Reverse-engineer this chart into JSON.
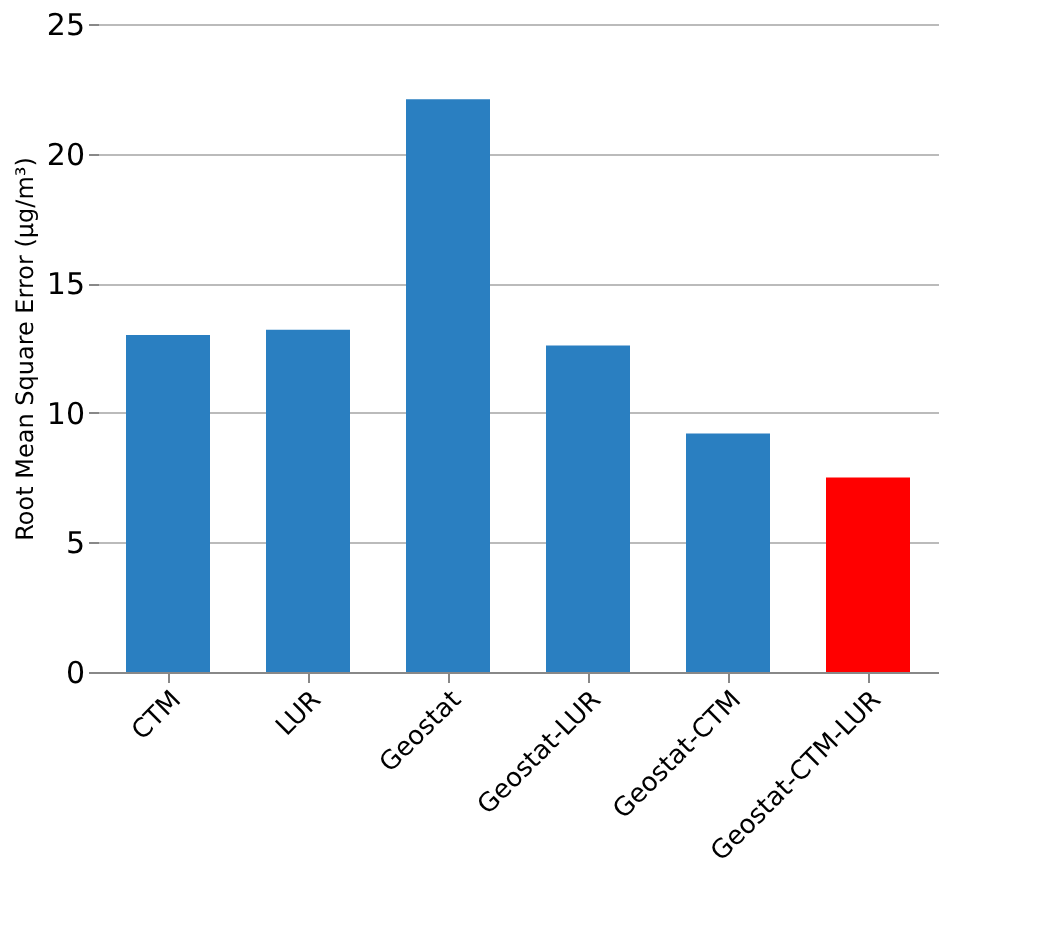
{
  "chart_data": {
    "type": "bar",
    "ylabel": "Root Mean Square Error (µg/m³)",
    "categories": [
      "CTM",
      "LUR",
      "Geostat",
      "Geostat-LUR",
      "Geostat-CTM",
      "Geostat-CTM-LUR"
    ],
    "values": [
      13.0,
      13.2,
      22.1,
      12.6,
      9.2,
      7.5
    ],
    "colors": [
      "#2a7fc1",
      "#2a7fc1",
      "#2a7fc1",
      "#2a7fc1",
      "#2a7fc1",
      "#ff0000"
    ],
    "ylim": [
      0,
      25
    ],
    "yticks": [
      0,
      5,
      10,
      15,
      20,
      25
    ],
    "grid": "y"
  }
}
